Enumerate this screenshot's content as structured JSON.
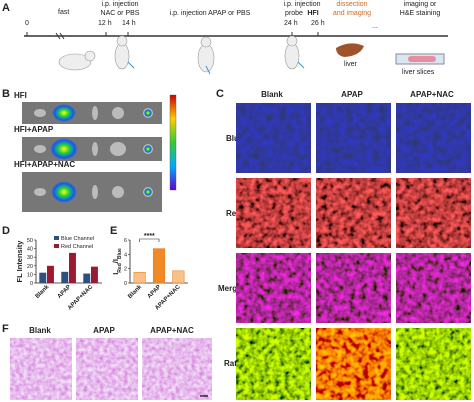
{
  "panel_labels": [
    "A",
    "B",
    "C",
    "D",
    "E",
    "F"
  ],
  "timeline": {
    "ticks": [
      "0",
      "12 h",
      "14 h",
      "24 h",
      "26 h"
    ],
    "fast": "fast",
    "step1": [
      "i.p. injection",
      "NAC or PBS"
    ],
    "step2": "i.p. injection APAP or PBS",
    "step3": [
      "i.p. injection",
      "probe",
      "HFI"
    ],
    "step4": [
      "dissection",
      "and imaging"
    ],
    "step5": [
      "imaging or",
      "H&E staining"
    ],
    "ellipsis": "...",
    "liver": "liver",
    "liver_slices": "liver slices"
  },
  "panel_b": {
    "rows": [
      "HFI",
      "HFI+APAP",
      "HFI+APAP+NAC"
    ]
  },
  "panel_c": {
    "columns": [
      "Blank",
      "APAP",
      "APAP+NAC"
    ],
    "rows": [
      "Blue",
      "Red",
      "Merged",
      "Ratio"
    ]
  },
  "panel_d": {
    "type": "bar",
    "y_label": "FL Intensity",
    "categories": [
      "Blank",
      "APAP",
      "APAP+NAC"
    ],
    "series": [
      {
        "name": "Blue Channel",
        "color": "#2f4f7f",
        "values": [
          12,
          13,
          11
        ]
      },
      {
        "name": "Red Channel",
        "color": "#9c1a30",
        "values": [
          20,
          35,
          19
        ]
      }
    ],
    "ylim": [
      0,
      50
    ],
    "yticks": [
      0,
      10,
      20,
      30,
      40,
      50
    ]
  },
  "panel_e": {
    "type": "bar",
    "y_label": [
      "I",
      "Red",
      "/I",
      "Blue"
    ],
    "significance": "****",
    "categories": [
      "Blank",
      "APAP",
      "APAP+NAC"
    ],
    "values": [
      1.5,
      4.8,
      1.7
    ],
    "colors": [
      "#f9c08a",
      "#f08a24",
      "#f9c08a"
    ],
    "ylim": [
      0,
      6
    ],
    "yticks": [
      0,
      2,
      4,
      6
    ]
  },
  "panel_f": {
    "columns": [
      "Blank",
      "APAP",
      "APAP+NAC"
    ]
  }
}
